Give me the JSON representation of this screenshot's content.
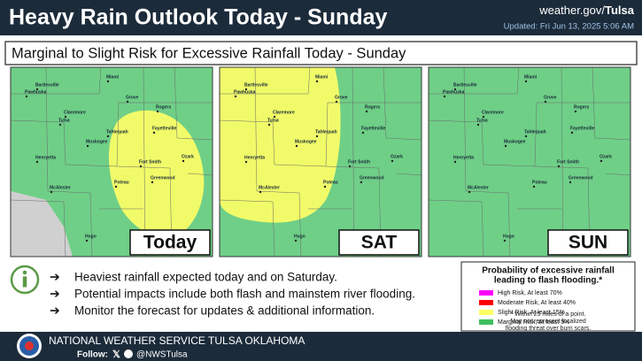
{
  "header": {
    "title": "Heavy Rain Outlook Today - Sunday",
    "site": "weather.gov/",
    "site_office": "Tulsa",
    "updated": "Updated: Fri Jun 13, 2025 5:06 AM"
  },
  "subtitle": "Marginal to Slight Risk for Excessive Rainfall Today - Sunday",
  "cities": [
    "Bartlesville",
    "Miami",
    "Pawhuska",
    "Grove",
    "Claremore",
    "Tulsa",
    "Rogers",
    "Tahlequah",
    "Fayetteville",
    "Muskogee",
    "Henryetta",
    "Fort Smith",
    "Ozark",
    "Greenwood",
    "Poteau",
    "McAlester",
    "Hugo"
  ],
  "maps": [
    {
      "label": "Today"
    },
    {
      "label": "SAT"
    },
    {
      "label": "SUN"
    }
  ],
  "bullets": [
    "Heaviest rainfall expected today and on Saturday.",
    "Potential impacts include both flash and mainstem river flooding.",
    "Monitor the forecast for updates & additional information."
  ],
  "legend": {
    "title": [
      "Probability of excessive rainfall",
      "leading to flash flooding.*"
    ],
    "items": [
      {
        "label": "High Risk, At least 70%",
        "color": "#ff00ff"
      },
      {
        "label": "Moderate Risk, At least 40%",
        "color": "#ff0000"
      },
      {
        "label": "Slight Risk, At least 15%",
        "color": "#ffff66"
      },
      {
        "label": "Marginal Risk, At least 5%",
        "color": "#3fbf5f"
      }
    ],
    "note": [
      "* Within 25 miles of a point.",
      "May not represent localized",
      "flooding threat over burn scars."
    ]
  },
  "footer": {
    "org": "NATIONAL WEATHER SERVICE TULSA OKLAHOMA",
    "follow": "Follow:",
    "handle": "@NWSTulsa"
  }
}
